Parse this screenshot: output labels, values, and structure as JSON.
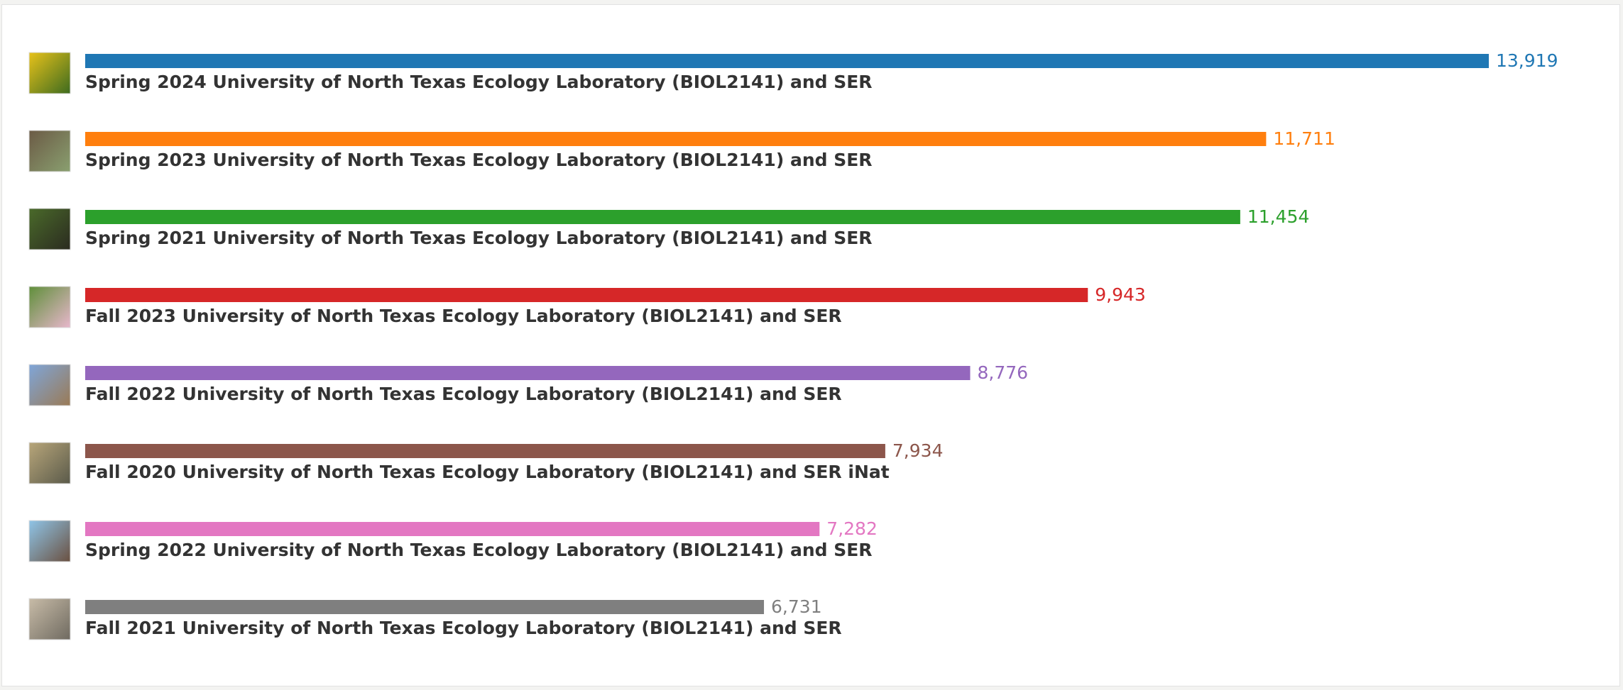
{
  "chart_data": {
    "type": "bar",
    "orientation": "horizontal",
    "categories": [
      "Spring 2024 University of North Texas Ecology Laboratory (BIOL2141) and SER",
      "Spring 2023 University of North Texas Ecology Laboratory (BIOL2141) and SER",
      "Spring 2021 University of North Texas Ecology Laboratory (BIOL2141) and SER",
      "Fall 2023 University of North Texas Ecology Laboratory (BIOL2141) and SER",
      "Fall 2022 University of North Texas Ecology Laboratory (BIOL2141) and SER",
      "Fall 2020 University of North Texas Ecology Laboratory (BIOL2141) and SER iNat",
      "Spring 2022 University of North Texas Ecology Laboratory (BIOL2141) and SER",
      "Fall 2021 University of North Texas Ecology Laboratory (BIOL2141) and SER"
    ],
    "values": [
      13919,
      11711,
      11454,
      9943,
      8776,
      7934,
      7282,
      6731
    ],
    "value_labels": [
      "13,919",
      "11,711",
      "11,454",
      "9,943",
      "8,776",
      "7,934",
      "7,282",
      "6,731"
    ],
    "colors": [
      "#1f77b4",
      "#ff7f0e",
      "#2ca02c",
      "#d62728",
      "#9467bd",
      "#8c564b",
      "#e377c2",
      "#7f7f7f"
    ]
  }
}
